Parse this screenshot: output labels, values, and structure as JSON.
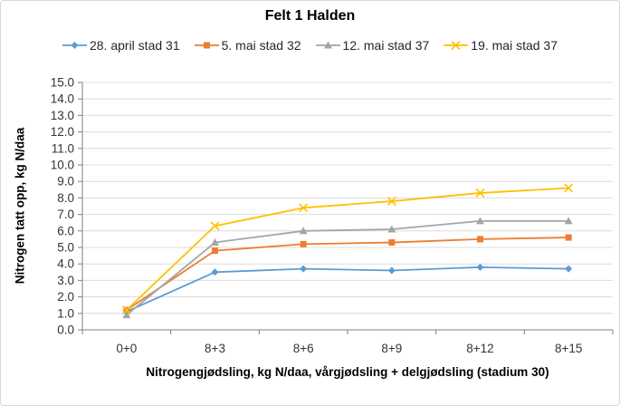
{
  "chart_data": {
    "type": "line",
    "title": "Felt 1 Halden",
    "xlabel": "Nitrogengjødsling, kg N/daa, vårgjødsling + delgjødsling (stadium 30)",
    "ylabel": "Nitrogen tatt opp, kg N/daa",
    "categories": [
      "0+0",
      "8+3",
      "8+6",
      "8+9",
      "8+12",
      "8+15"
    ],
    "series": [
      {
        "name": "28. april stad 31",
        "color": "#5B9BD5",
        "marker": "diamond",
        "values": [
          1.1,
          3.5,
          3.7,
          3.6,
          3.8,
          3.7
        ]
      },
      {
        "name": "5. mai stad 32",
        "color": "#ED7D31",
        "marker": "square",
        "values": [
          1.2,
          4.8,
          5.2,
          5.3,
          5.5,
          5.6
        ]
      },
      {
        "name": "12. mai stad 37",
        "color": "#A5A5A5",
        "marker": "triangle",
        "values": [
          0.9,
          5.3,
          6.0,
          6.1,
          6.6,
          6.6
        ]
      },
      {
        "name": "19. mai stad 37",
        "color": "#FFC000",
        "marker": "x",
        "values": [
          1.2,
          6.3,
          7.4,
          7.8,
          8.3,
          8.6
        ]
      }
    ],
    "ylim": [
      0,
      15
    ],
    "ytick_step": 1.0,
    "ytick_decimals": 1,
    "grid": "horizontal",
    "legend_position": "top",
    "colors": {
      "gridline": "#DCDCDC",
      "axis": "#7F7F7F",
      "tick_label": "#333333",
      "title": "#000000",
      "frame_border": "#D9D9D9",
      "background": "#FFFFFF"
    }
  }
}
